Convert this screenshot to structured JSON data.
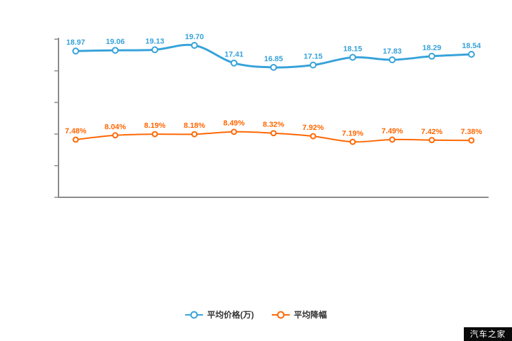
{
  "watermark": {
    "text": "汽车之家"
  },
  "chart_data": {
    "type": "line",
    "title": "",
    "xlabel": "",
    "ylabel": "",
    "ylim": [
      0,
      20.5
    ],
    "grid": false,
    "legend_position": "bottom",
    "series": [
      {
        "name": "平均价格(万)",
        "color": "#36a2da",
        "suffix": "",
        "values": [
          18.97,
          19.06,
          19.13,
          19.7,
          17.41,
          16.85,
          17.15,
          18.15,
          17.83,
          18.29,
          18.54
        ]
      },
      {
        "name": "平均降幅",
        "color": "#ff6600",
        "suffix": "%",
        "values": [
          7.48,
          8.04,
          8.19,
          8.18,
          8.49,
          8.32,
          7.92,
          7.19,
          7.49,
          7.42,
          7.38
        ]
      }
    ]
  }
}
